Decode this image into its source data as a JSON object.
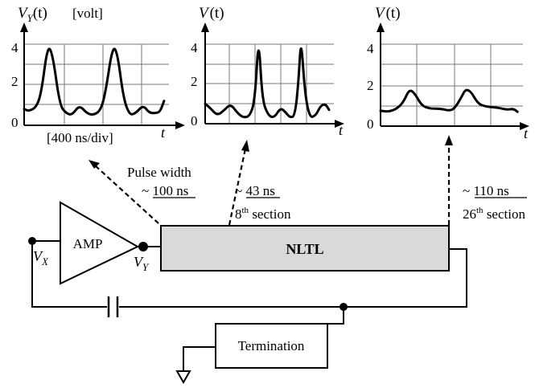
{
  "plots": [
    {
      "ylabel_main": "V",
      "ylabel_sub": "Y",
      "ylabel_rest": "(t)",
      "unit": "[volt]",
      "yticks": [
        "4",
        "2",
        "0"
      ],
      "xlabel": "t",
      "timebase": "[400 ns/div]",
      "wave": [
        [
          0,
          0.8
        ],
        [
          0.2,
          0.7
        ],
        [
          0.5,
          0.9
        ],
        [
          0.7,
          1.6
        ],
        [
          0.95,
          3.9
        ],
        [
          1.15,
          3.6
        ],
        [
          1.45,
          1.0
        ],
        [
          1.7,
          0.6
        ],
        [
          1.95,
          0.5
        ],
        [
          2.25,
          1.0
        ],
        [
          2.55,
          0.6
        ],
        [
          2.8,
          0.5
        ],
        [
          3.1,
          0.7
        ],
        [
          3.3,
          1.5
        ],
        [
          3.6,
          3.9
        ],
        [
          3.8,
          3.6
        ],
        [
          4.05,
          1.3
        ],
        [
          4.3,
          0.5
        ],
        [
          4.55,
          0.6
        ],
        [
          4.85,
          1.0
        ],
        [
          5.1,
          0.6
        ],
        [
          5.4,
          0.6
        ],
        [
          5.55,
          0.7
        ],
        [
          5.7,
          1.2
        ]
      ]
    },
    {
      "ylabel_main": "V",
      "ylabel_rest": "(t)",
      "yticks": [
        "4",
        "2",
        "0"
      ],
      "xlabel": "t",
      "wave": [
        [
          0,
          1.0
        ],
        [
          0.2,
          0.8
        ],
        [
          0.5,
          0.4
        ],
        [
          0.8,
          0.7
        ],
        [
          1.05,
          1.0
        ],
        [
          1.35,
          0.5
        ],
        [
          1.6,
          0.3
        ],
        [
          1.85,
          0.4
        ],
        [
          2.05,
          1.2
        ],
        [
          2.2,
          4.5
        ],
        [
          2.35,
          1.2
        ],
        [
          2.6,
          0.4
        ],
        [
          2.85,
          0.3
        ],
        [
          3.1,
          0.8
        ],
        [
          3.3,
          0.6
        ],
        [
          3.5,
          0.3
        ],
        [
          3.7,
          0.4
        ],
        [
          3.85,
          2.2
        ],
        [
          3.95,
          4.4
        ],
        [
          4.1,
          1.6
        ],
        [
          4.3,
          0.3
        ],
        [
          4.55,
          0.4
        ],
        [
          4.75,
          0.9
        ],
        [
          4.95,
          1.0
        ],
        [
          5.1,
          0.7
        ]
      ]
    },
    {
      "ylabel_main": "V",
      "ylabel_rest": "(t)",
      "yticks": [
        "4",
        "2",
        "0"
      ],
      "xlabel": "t",
      "wave": [
        [
          0,
          0.75
        ],
        [
          0.3,
          0.7
        ],
        [
          0.6,
          0.85
        ],
        [
          0.85,
          1.2
        ],
        [
          1.05,
          1.8
        ],
        [
          1.25,
          1.6
        ],
        [
          1.5,
          1.0
        ],
        [
          1.8,
          0.85
        ],
        [
          2.2,
          0.85
        ],
        [
          2.5,
          0.75
        ],
        [
          2.7,
          0.85
        ],
        [
          2.95,
          1.4
        ],
        [
          3.1,
          1.8
        ],
        [
          3.3,
          1.7
        ],
        [
          3.55,
          1.1
        ],
        [
          3.85,
          0.95
        ],
        [
          4.3,
          0.9
        ],
        [
          4.6,
          0.8
        ],
        [
          4.85,
          0.85
        ],
        [
          5.0,
          0.7
        ]
      ]
    }
  ],
  "annotations": {
    "pulse_width_label": "Pulse width",
    "pulse_width_prefix": "~ ",
    "pulse_width_value": "100 ns",
    "section8_prefix": "~ ",
    "section8_value": "43  ns",
    "section8_num": "8",
    "section8_sup": "th",
    "section8_rest": " section",
    "section26_prefix": "~ ",
    "section26_value": "110  ns",
    "section26_num": "26",
    "section26_sup": "th",
    "section26_rest": " section"
  },
  "circuit": {
    "amp_label": "AMP",
    "nltl_label": "NLTL",
    "termination_label": "Termination",
    "vx_main": "V",
    "vx_sub": "X",
    "vy_main": "V",
    "vy_sub": "Y"
  },
  "colors": {
    "nltl_fill": "#d9d9d9",
    "line": "#000000"
  }
}
